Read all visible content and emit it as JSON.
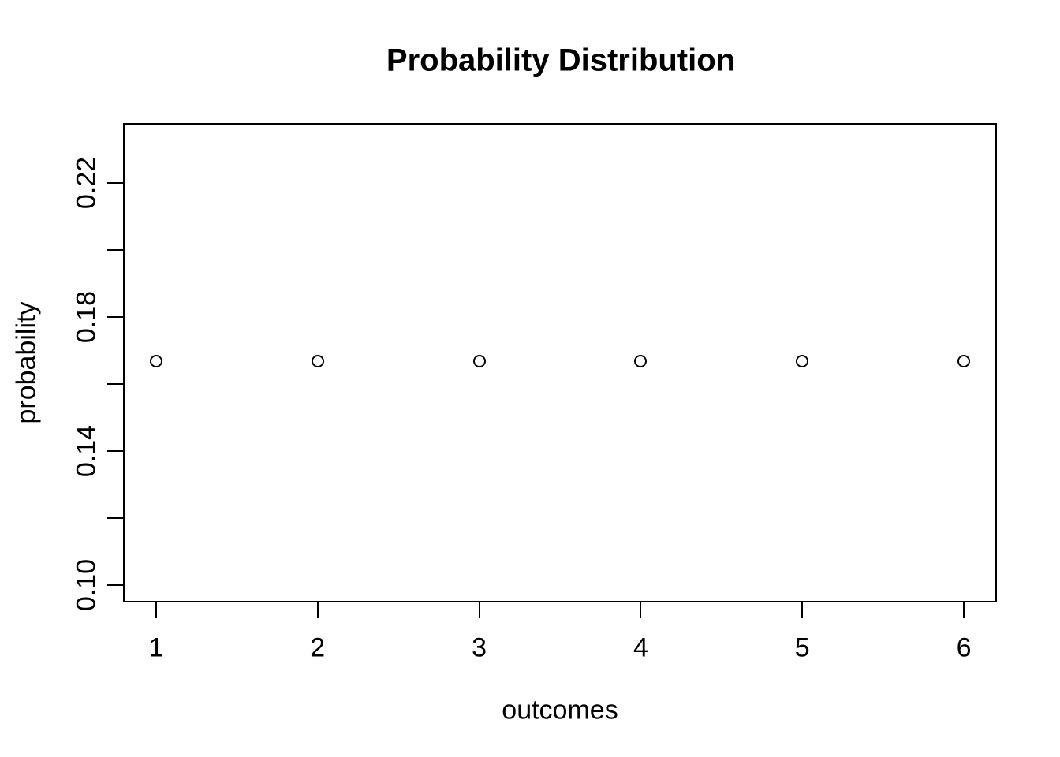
{
  "page": {
    "background_color": "#ffffff",
    "foreground_color": "#000000"
  },
  "chart_data": {
    "type": "scatter",
    "title": "Probability Distribution",
    "xlabel": "outcomes",
    "ylabel": "probability",
    "x": [
      1,
      2,
      3,
      4,
      5,
      6
    ],
    "y": [
      0.1667,
      0.1667,
      0.1667,
      0.1667,
      0.1667,
      0.1667
    ],
    "marker": "open-circle",
    "marker_color": "#000000",
    "xlim": [
      0.8,
      6.2
    ],
    "ylim": [
      0.095,
      0.2376
    ],
    "x_ticks": [
      1,
      2,
      3,
      4,
      5,
      6
    ],
    "x_tick_labels": [
      "1",
      "2",
      "3",
      "4",
      "5",
      "6"
    ],
    "y_ticks": [
      0.1,
      0.12,
      0.14,
      0.16,
      0.18,
      0.2,
      0.22
    ],
    "y_tick_labels": [
      "0.10",
      "",
      "0.14",
      "",
      "0.18",
      "",
      "0.22"
    ],
    "grid": false,
    "legend": false,
    "box": true
  }
}
